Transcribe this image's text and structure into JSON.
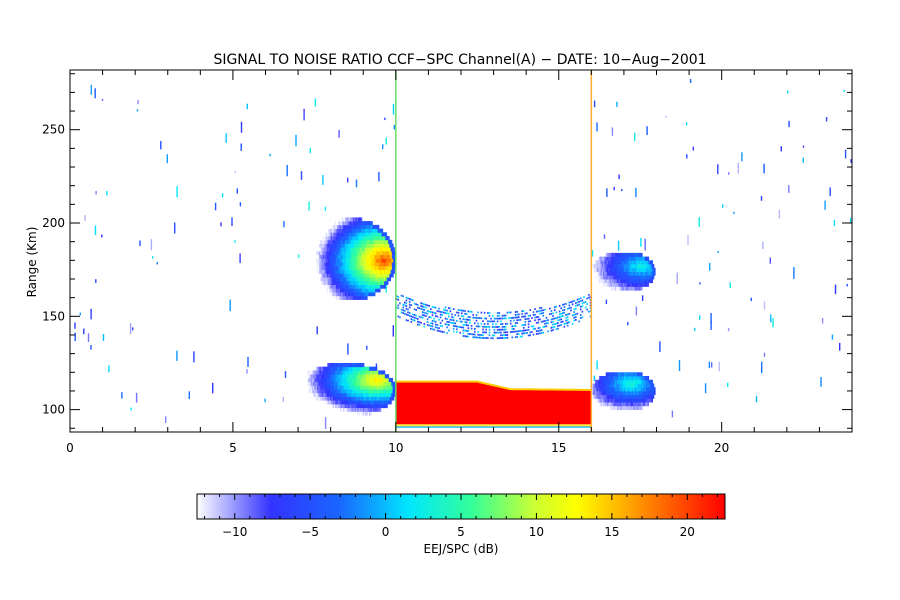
{
  "chart_data": {
    "type": "heatmap",
    "title": "SIGNAL TO NOISE RATIO CCF−SPC Channel(A) − DATE: 10−Aug−2001",
    "xlabel": "",
    "ylabel": "Range (Km)",
    "xlim": [
      0,
      24
    ],
    "ylim": [
      88,
      282
    ],
    "x_ticks": [
      "0",
      "5",
      "10",
      "15",
      "20"
    ],
    "x_tick_values": [
      0,
      5,
      10,
      15,
      20
    ],
    "y_ticks": [
      "100",
      "150",
      "200",
      "250"
    ],
    "y_tick_values": [
      100,
      150,
      200,
      250
    ],
    "colorbar": {
      "label": "EEJ/SPC (dB)",
      "range": [
        -12.5,
        22.5
      ],
      "ticks": [
        "−10",
        "−5",
        "0",
        "5",
        "10",
        "15",
        "20"
      ],
      "tick_values": [
        -10,
        -5,
        0,
        5,
        10,
        15,
        20
      ]
    },
    "mode_boundaries_hours": [
      10,
      16
    ],
    "regions": [
      {
        "name": "upper echo layer (morning)",
        "x": [
          7,
          10
        ],
        "y": [
          158,
          203
        ],
        "peak_snr_db": 20,
        "peak_at": [
          9.5,
          180
        ]
      },
      {
        "name": "lower echo layer (morning)",
        "x": [
          7,
          10
        ],
        "y": [
          96,
          124
        ],
        "peak_snr_db": 14,
        "peak_at": [
          9.3,
          116
        ]
      },
      {
        "name": "150 km echoes",
        "x": [
          10,
          16
        ],
        "y": [
          137,
          163
        ],
        "peak_snr_db": 2
      },
      {
        "name": "EEJ saturated band",
        "x": [
          10,
          16
        ],
        "y": [
          91,
          115
        ],
        "peak_snr_db": 22
      },
      {
        "name": "upper echo layer (afternoon)",
        "x": [
          16,
          18
        ],
        "y": [
          164,
          184
        ],
        "peak_snr_db": 3
      },
      {
        "name": "lower echo layer (afternoon)",
        "x": [
          16,
          18
        ],
        "y": [
          100,
          120
        ],
        "peak_snr_db": 4
      }
    ]
  }
}
